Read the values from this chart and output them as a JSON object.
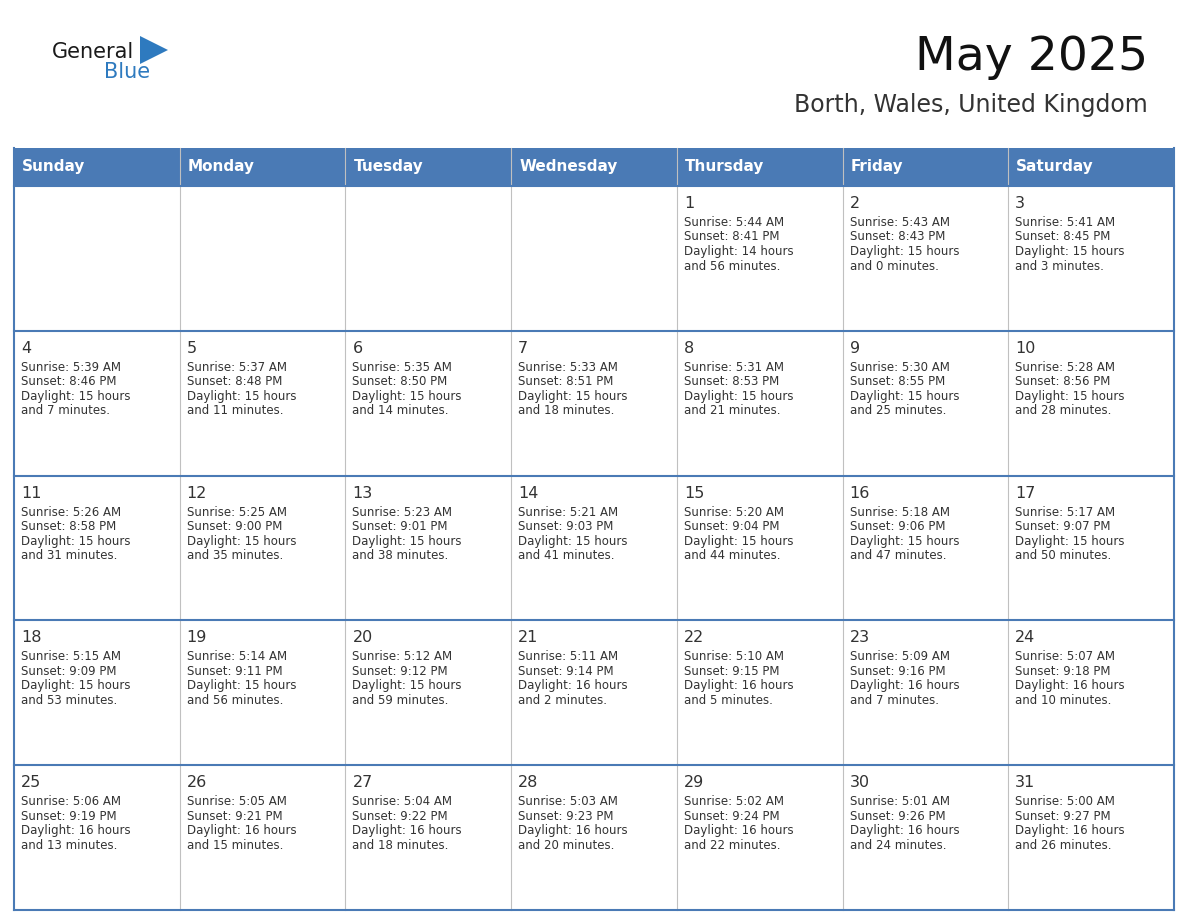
{
  "title": "May 2025",
  "subtitle": "Borth, Wales, United Kingdom",
  "days_of_week": [
    "Sunday",
    "Monday",
    "Tuesday",
    "Wednesday",
    "Thursday",
    "Friday",
    "Saturday"
  ],
  "header_bg": "#4a7ab5",
  "header_text": "#ffffff",
  "cell_bg": "#ffffff",
  "row_border_color": "#4a7ab5",
  "col_border_color": "#c0c0c0",
  "text_color": "#333333",
  "day_num_color": "#333333",
  "logo_general_color": "#1a1a1a",
  "logo_blue_color": "#2e7abf",
  "title_color": "#111111",
  "subtitle_color": "#333333",
  "weeks": [
    [
      {
        "day": null,
        "info": ""
      },
      {
        "day": null,
        "info": ""
      },
      {
        "day": null,
        "info": ""
      },
      {
        "day": null,
        "info": ""
      },
      {
        "day": 1,
        "info": "Sunrise: 5:44 AM\nSunset: 8:41 PM\nDaylight: 14 hours\nand 56 minutes."
      },
      {
        "day": 2,
        "info": "Sunrise: 5:43 AM\nSunset: 8:43 PM\nDaylight: 15 hours\nand 0 minutes."
      },
      {
        "day": 3,
        "info": "Sunrise: 5:41 AM\nSunset: 8:45 PM\nDaylight: 15 hours\nand 3 minutes."
      }
    ],
    [
      {
        "day": 4,
        "info": "Sunrise: 5:39 AM\nSunset: 8:46 PM\nDaylight: 15 hours\nand 7 minutes."
      },
      {
        "day": 5,
        "info": "Sunrise: 5:37 AM\nSunset: 8:48 PM\nDaylight: 15 hours\nand 11 minutes."
      },
      {
        "day": 6,
        "info": "Sunrise: 5:35 AM\nSunset: 8:50 PM\nDaylight: 15 hours\nand 14 minutes."
      },
      {
        "day": 7,
        "info": "Sunrise: 5:33 AM\nSunset: 8:51 PM\nDaylight: 15 hours\nand 18 minutes."
      },
      {
        "day": 8,
        "info": "Sunrise: 5:31 AM\nSunset: 8:53 PM\nDaylight: 15 hours\nand 21 minutes."
      },
      {
        "day": 9,
        "info": "Sunrise: 5:30 AM\nSunset: 8:55 PM\nDaylight: 15 hours\nand 25 minutes."
      },
      {
        "day": 10,
        "info": "Sunrise: 5:28 AM\nSunset: 8:56 PM\nDaylight: 15 hours\nand 28 minutes."
      }
    ],
    [
      {
        "day": 11,
        "info": "Sunrise: 5:26 AM\nSunset: 8:58 PM\nDaylight: 15 hours\nand 31 minutes."
      },
      {
        "day": 12,
        "info": "Sunrise: 5:25 AM\nSunset: 9:00 PM\nDaylight: 15 hours\nand 35 minutes."
      },
      {
        "day": 13,
        "info": "Sunrise: 5:23 AM\nSunset: 9:01 PM\nDaylight: 15 hours\nand 38 minutes."
      },
      {
        "day": 14,
        "info": "Sunrise: 5:21 AM\nSunset: 9:03 PM\nDaylight: 15 hours\nand 41 minutes."
      },
      {
        "day": 15,
        "info": "Sunrise: 5:20 AM\nSunset: 9:04 PM\nDaylight: 15 hours\nand 44 minutes."
      },
      {
        "day": 16,
        "info": "Sunrise: 5:18 AM\nSunset: 9:06 PM\nDaylight: 15 hours\nand 47 minutes."
      },
      {
        "day": 17,
        "info": "Sunrise: 5:17 AM\nSunset: 9:07 PM\nDaylight: 15 hours\nand 50 minutes."
      }
    ],
    [
      {
        "day": 18,
        "info": "Sunrise: 5:15 AM\nSunset: 9:09 PM\nDaylight: 15 hours\nand 53 minutes."
      },
      {
        "day": 19,
        "info": "Sunrise: 5:14 AM\nSunset: 9:11 PM\nDaylight: 15 hours\nand 56 minutes."
      },
      {
        "day": 20,
        "info": "Sunrise: 5:12 AM\nSunset: 9:12 PM\nDaylight: 15 hours\nand 59 minutes."
      },
      {
        "day": 21,
        "info": "Sunrise: 5:11 AM\nSunset: 9:14 PM\nDaylight: 16 hours\nand 2 minutes."
      },
      {
        "day": 22,
        "info": "Sunrise: 5:10 AM\nSunset: 9:15 PM\nDaylight: 16 hours\nand 5 minutes."
      },
      {
        "day": 23,
        "info": "Sunrise: 5:09 AM\nSunset: 9:16 PM\nDaylight: 16 hours\nand 7 minutes."
      },
      {
        "day": 24,
        "info": "Sunrise: 5:07 AM\nSunset: 9:18 PM\nDaylight: 16 hours\nand 10 minutes."
      }
    ],
    [
      {
        "day": 25,
        "info": "Sunrise: 5:06 AM\nSunset: 9:19 PM\nDaylight: 16 hours\nand 13 minutes."
      },
      {
        "day": 26,
        "info": "Sunrise: 5:05 AM\nSunset: 9:21 PM\nDaylight: 16 hours\nand 15 minutes."
      },
      {
        "day": 27,
        "info": "Sunrise: 5:04 AM\nSunset: 9:22 PM\nDaylight: 16 hours\nand 18 minutes."
      },
      {
        "day": 28,
        "info": "Sunrise: 5:03 AM\nSunset: 9:23 PM\nDaylight: 16 hours\nand 20 minutes."
      },
      {
        "day": 29,
        "info": "Sunrise: 5:02 AM\nSunset: 9:24 PM\nDaylight: 16 hours\nand 22 minutes."
      },
      {
        "day": 30,
        "info": "Sunrise: 5:01 AM\nSunset: 9:26 PM\nDaylight: 16 hours\nand 24 minutes."
      },
      {
        "day": 31,
        "info": "Sunrise: 5:00 AM\nSunset: 9:27 PM\nDaylight: 16 hours\nand 26 minutes."
      }
    ]
  ]
}
